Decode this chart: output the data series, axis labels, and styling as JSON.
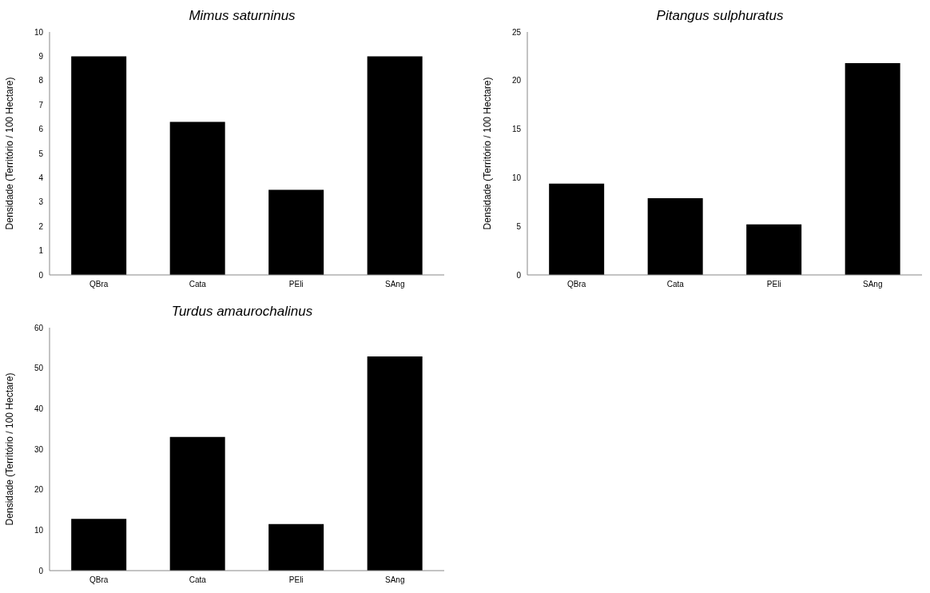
{
  "chart_data": [
    {
      "type": "bar",
      "title": "Mimus saturninus",
      "ylabel": "Densidade (Território / 100 Hectare)",
      "categories": [
        "QBra",
        "Cata",
        "PEli",
        "SAng"
      ],
      "values": [
        9.0,
        6.3,
        3.5,
        9.0
      ],
      "color": "#000000",
      "ylim": [
        0,
        10
      ],
      "yticks": [
        0,
        1,
        2,
        3,
        4,
        5,
        6,
        7,
        8,
        9,
        10
      ],
      "grid": false,
      "legend": false
    },
    {
      "type": "bar",
      "title": "Pitangus sulphuratus",
      "ylabel": "Densidade (Território / 100 Hectare)",
      "categories": [
        "QBra",
        "Cata",
        "PEli",
        "SAng"
      ],
      "values": [
        9.4,
        7.9,
        5.2,
        21.8
      ],
      "color": "#000000",
      "ylim": [
        0,
        25
      ],
      "yticks": [
        0,
        5,
        10,
        15,
        20,
        25
      ],
      "grid": false,
      "legend": false
    },
    {
      "type": "bar",
      "title": "Turdus amaurochalinus",
      "ylabel": "Densidade (Território / 100 Hectare)",
      "categories": [
        "QBra",
        "Cata",
        "PEli",
        "SAng"
      ],
      "values": [
        12.8,
        33.0,
        11.5,
        52.9
      ],
      "color": "#000000",
      "ylim": [
        0,
        60
      ],
      "yticks": [
        0,
        10,
        20,
        30,
        40,
        50,
        60
      ],
      "grid": false,
      "legend": false
    }
  ]
}
